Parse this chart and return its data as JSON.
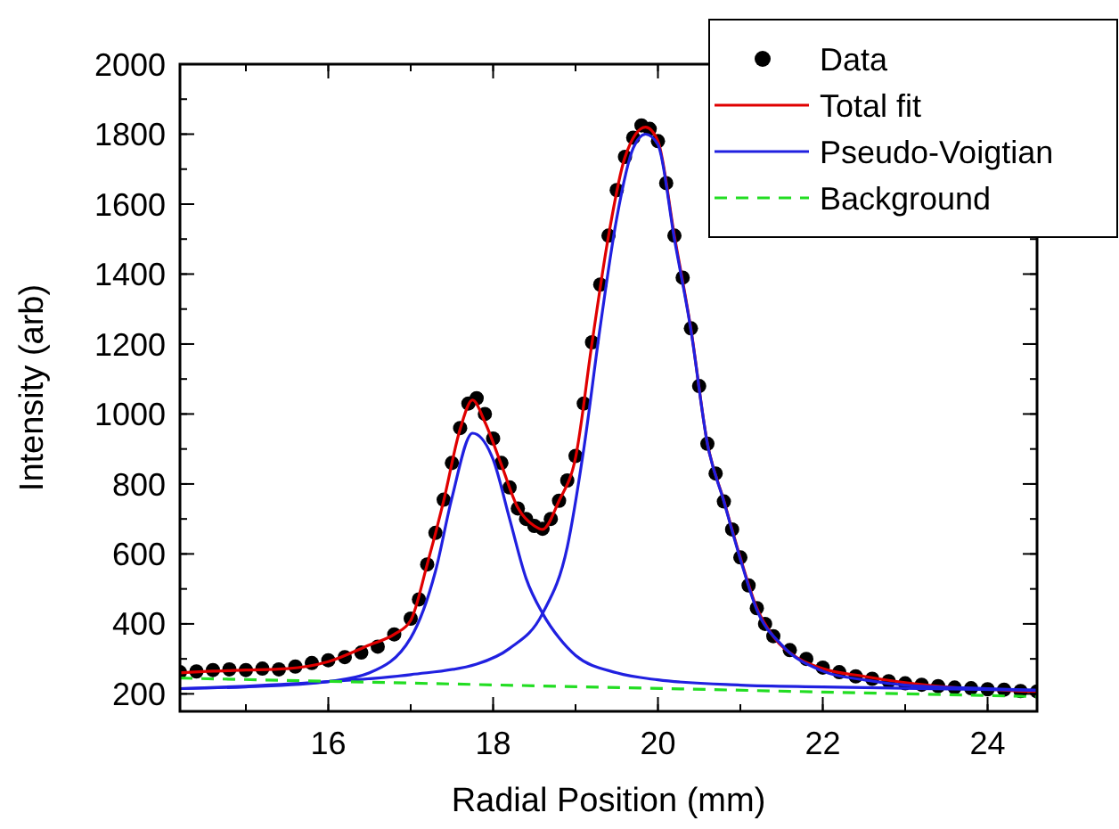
{
  "chart_data": {
    "type": "line",
    "xlabel": "Radial Position (mm)",
    "ylabel": "Intensity (arb)",
    "xlim": [
      14.2,
      24.6
    ],
    "xticks": [
      16,
      18,
      20,
      22,
      24
    ],
    "ylim": [
      150,
      2000
    ],
    "yticks": [
      200,
      400,
      600,
      800,
      1000,
      1200,
      1400,
      1600,
      1800,
      2000
    ],
    "grid": false,
    "legend": "top right",
    "series": [
      {
        "name": "Data",
        "type": "scatter",
        "marker": "circle",
        "color": "#000000",
        "x": [
          14.2,
          14.4,
          14.6,
          14.8,
          15.0,
          15.2,
          15.4,
          15.6,
          15.8,
          16.0,
          16.2,
          16.4,
          16.6,
          16.8,
          17.0,
          17.1,
          17.2,
          17.3,
          17.4,
          17.5,
          17.6,
          17.7,
          17.8,
          17.9,
          18.0,
          18.1,
          18.2,
          18.3,
          18.4,
          18.5,
          18.6,
          18.7,
          18.8,
          18.9,
          19.0,
          19.1,
          19.2,
          19.3,
          19.4,
          19.5,
          19.6,
          19.7,
          19.8,
          19.9,
          20.0,
          20.1,
          20.2,
          20.3,
          20.4,
          20.5,
          20.6,
          20.7,
          20.8,
          20.9,
          21.0,
          21.1,
          21.2,
          21.3,
          21.4,
          21.6,
          21.8,
          22.0,
          22.2,
          22.4,
          22.6,
          22.8,
          23.0,
          23.2,
          23.4,
          23.6,
          23.8,
          24.0,
          24.2,
          24.4,
          24.6
        ],
        "values": [
          262,
          264,
          268,
          270,
          268,
          272,
          270,
          278,
          288,
          296,
          305,
          318,
          335,
          370,
          415,
          470,
          570,
          660,
          755,
          860,
          960,
          1030,
          1045,
          1000,
          930,
          860,
          790,
          730,
          700,
          680,
          672,
          700,
          752,
          810,
          880,
          1030,
          1205,
          1370,
          1510,
          1640,
          1735,
          1790,
          1825,
          1815,
          1780,
          1660,
          1510,
          1390,
          1245,
          1080,
          915,
          830,
          750,
          670,
          590,
          510,
          445,
          400,
          365,
          325,
          300,
          275,
          262,
          250,
          243,
          236,
          230,
          226,
          222,
          218,
          216,
          213,
          212,
          208,
          207
        ]
      },
      {
        "name": "Total fit",
        "color": "#e00000",
        "x": [
          14.2,
          14.6,
          15.0,
          15.5,
          16.0,
          16.5,
          16.8,
          17.0,
          17.2,
          17.4,
          17.6,
          17.75,
          17.9,
          18.1,
          18.3,
          18.5,
          18.6,
          18.8,
          19.0,
          19.2,
          19.4,
          19.6,
          19.85,
          20.0,
          20.2,
          20.4,
          20.6,
          20.8,
          21.0,
          21.2,
          21.4,
          21.7,
          22.0,
          22.5,
          23.0,
          23.5,
          24.0,
          24.6
        ],
        "values": [
          260,
          265,
          268,
          272,
          292,
          340,
          370,
          410,
          570,
          752,
          957,
          1040,
          977,
          855,
          732,
          680,
          670,
          752,
          875,
          1203,
          1509,
          1734,
          1820,
          1780,
          1509,
          1243,
          916,
          752,
          589,
          445,
          364,
          302,
          272,
          250,
          232,
          220,
          213,
          205
        ]
      },
      {
        "name": "Pseudo-Voigtian",
        "color": "#2020e0",
        "x": [
          14.2,
          15.0,
          16.0,
          16.5,
          17.0,
          17.3,
          17.5,
          17.75,
          18.0,
          18.2,
          18.4,
          18.6,
          18.8,
          19.0,
          19.5,
          20.0,
          21.0,
          22.0,
          24.6
        ],
        "values": [
          215,
          220,
          235,
          260,
          360,
          550,
          760,
          945,
          870,
          700,
          530,
          430,
          360,
          310,
          260,
          240,
          225,
          220,
          210
        ]
      },
      {
        "color": "#2020e0",
        "x": [
          14.2,
          15.0,
          16.0,
          17.0,
          17.8,
          18.2,
          18.6,
          18.9,
          19.1,
          19.3,
          19.5,
          19.7,
          19.85,
          20.0,
          20.2,
          20.4,
          20.6,
          20.8,
          21.0,
          21.2,
          21.5,
          22.0,
          22.5,
          23.0,
          24.0,
          24.6
        ],
        "values": [
          215,
          222,
          235,
          255,
          285,
          330,
          430,
          620,
          900,
          1250,
          1560,
          1760,
          1800,
          1770,
          1500,
          1240,
          915,
          750,
          585,
          440,
          340,
          265,
          240,
          225,
          215,
          210
        ]
      },
      {
        "name": "Background",
        "color": "#22dd22",
        "line_style": "dashed",
        "x": [
          14.2,
          24.6
        ],
        "values": [
          245,
          192
        ]
      }
    ]
  }
}
